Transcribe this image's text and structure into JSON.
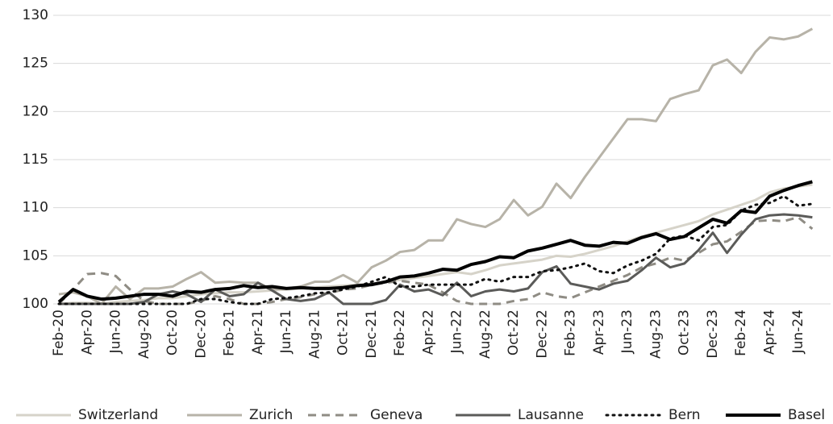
{
  "chart_data": {
    "type": "line",
    "categories": [
      "Feb-20",
      null,
      "Apr-20",
      null,
      "Jun-20",
      null,
      "Aug-20",
      null,
      "Oct-20",
      null,
      "Dec-20",
      null,
      "Feb-21",
      null,
      "Apr-21",
      null,
      "Jun-21",
      null,
      "Aug-21",
      null,
      "Oct-21",
      null,
      "Dec-21",
      null,
      "Feb-22",
      null,
      "Apr-22",
      null,
      "Jun-22",
      null,
      "Aug-22",
      null,
      "Oct-22",
      null,
      "Dec-22",
      null,
      "Feb-23",
      null,
      "Apr-23",
      null,
      "Jun-23",
      null,
      "Aug-23",
      null,
      "Oct-23",
      null,
      "Dec-23",
      null,
      "Feb-24",
      null,
      "Apr-24",
      null,
      "Jun-24",
      null
    ],
    "ylim": [
      100,
      130
    ],
    "yticks": [
      100,
      105,
      110,
      115,
      120,
      125,
      130
    ],
    "grid": true,
    "series": [
      {
        "name": "Switzerland",
        "color": "#d6d3c9",
        "line_style": "solid",
        "line_width": 3,
        "values": [
          100,
          100.1,
          100.1,
          100,
          100.2,
          100.3,
          100.4,
          100.6,
          100.6,
          100.8,
          101,
          101.1,
          101.2,
          101.2,
          101.3,
          101.4,
          101.5,
          101.6,
          101.7,
          101.8,
          101.9,
          102,
          102.1,
          102.3,
          102.5,
          102.7,
          102.9,
          103.1,
          103.3,
          103.1,
          103.5,
          104,
          104.2,
          104.4,
          104.6,
          105,
          104.9,
          105.2,
          105.6,
          106,
          106.5,
          107,
          107.4,
          107.8,
          108.2,
          108.6,
          109.3,
          109.8,
          110.3,
          110.8,
          111.6,
          112,
          112.2,
          112.4
        ]
      },
      {
        "name": "Zurich",
        "color": "#b7b3a8",
        "line_style": "solid",
        "line_width": 3,
        "values": [
          101,
          101.2,
          100.8,
          100,
          101.8,
          100.5,
          101.6,
          101.6,
          101.8,
          102.6,
          103.3,
          102.2,
          102.3,
          102.2,
          102.2,
          101.5,
          101.6,
          101.8,
          102.3,
          102.3,
          103,
          102.2,
          103.8,
          104.5,
          105.4,
          105.6,
          106.6,
          106.6,
          108.8,
          108.3,
          108,
          108.8,
          110.8,
          109.2,
          110.1,
          112.5,
          111,
          113.2,
          115.2,
          117.2,
          119.2,
          119.2,
          119,
          121.3,
          121.8,
          122.2,
          124.8,
          125.4,
          124,
          126.2,
          127.7,
          127.5,
          127.8,
          128.6
        ]
      },
      {
        "name": "Geneva",
        "color": "#8f8c84",
        "line_style": "dashed",
        "line_width": 3,
        "values": [
          100,
          101.5,
          103.1,
          103.2,
          102.9,
          101.5,
          100.3,
          100,
          100,
          100,
          100.3,
          100.8,
          100.5,
          100,
          100,
          100.2,
          100.5,
          100.7,
          101,
          101.1,
          101.5,
          101.6,
          102,
          102.2,
          102.4,
          102.2,
          102,
          101.2,
          100.3,
          100,
          100,
          100,
          100.3,
          100.5,
          101.2,
          100.8,
          100.6,
          101.2,
          101.8,
          102.4,
          103,
          103.8,
          104.2,
          104.8,
          104.5,
          105.3,
          106.2,
          106.5,
          107.5,
          108.6,
          108.7,
          108.6,
          109,
          107.8
        ]
      },
      {
        "name": "Lausanne",
        "color": "#5b5b59",
        "line_style": "solid",
        "line_width": 3,
        "values": [
          100,
          100,
          100,
          100,
          100,
          100,
          100.2,
          101,
          101.3,
          101,
          100.2,
          101.5,
          100.8,
          101,
          102.2,
          101.4,
          100.5,
          100.3,
          100.5,
          101.2,
          100,
          100,
          100,
          100.4,
          102,
          101.3,
          101.5,
          100.9,
          102.2,
          100.8,
          101.3,
          101.5,
          101.3,
          101.6,
          103.3,
          103.9,
          102.1,
          101.8,
          101.5,
          102.1,
          102.4,
          103.5,
          104.8,
          103.8,
          104.2,
          105.6,
          107.4,
          105.3,
          107.2,
          108.8,
          109.2,
          109.3,
          109.2,
          109
        ]
      },
      {
        "name": "Bern",
        "color": "#111111",
        "line_style": "dotted",
        "line_width": 3,
        "values": [
          100,
          100,
          100,
          100,
          100,
          100,
          100,
          100,
          100,
          100,
          100.5,
          100.5,
          100.2,
          100,
          100,
          100.5,
          100.6,
          100.8,
          101.1,
          101.2,
          101.5,
          101.8,
          102.3,
          102.8,
          101.8,
          101.8,
          102,
          102,
          102,
          102,
          102.6,
          102.3,
          102.8,
          102.8,
          103.4,
          103.5,
          103.8,
          104.2,
          103.4,
          103.2,
          104,
          104.5,
          105.2,
          106.8,
          107.1,
          106.6,
          108,
          108.2,
          109.7,
          110.3,
          110.5,
          111.2,
          110.2,
          110.4
        ]
      },
      {
        "name": "Basel",
        "color": "#000000",
        "line_style": "solid",
        "line_width": 4,
        "values": [
          100.2,
          101.5,
          100.8,
          100.5,
          100.6,
          100.8,
          101,
          101,
          100.8,
          101.3,
          101.2,
          101.5,
          101.6,
          101.9,
          101.7,
          101.8,
          101.6,
          101.7,
          101.6,
          101.6,
          101.7,
          101.9,
          102,
          102.3,
          102.8,
          102.9,
          103.2,
          103.6,
          103.5,
          104.1,
          104.4,
          104.9,
          104.8,
          105.5,
          105.8,
          106.2,
          106.6,
          106.1,
          106,
          106.4,
          106.3,
          106.9,
          107.3,
          106.7,
          107,
          107.9,
          108.8,
          108.4,
          109.7,
          109.5,
          111.2,
          111.8,
          112.3,
          112.7
        ]
      }
    ]
  }
}
